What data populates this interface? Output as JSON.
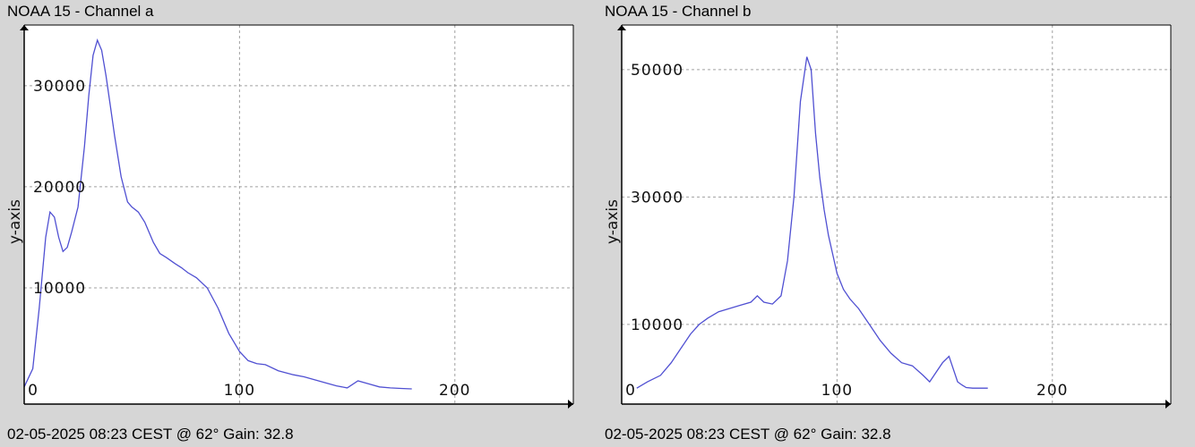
{
  "panels": [
    {
      "title": "NOAA 15 - Channel a",
      "footer": "02-05-2025 08:23 CEST @ 62° Gain: 32.8"
    },
    {
      "title": "NOAA 15 - Channel b",
      "footer": "02-05-2025 08:23 CEST @ 62° Gain: 32.8"
    }
  ],
  "colors": {
    "background": "#d6d6d6",
    "plot_background": "#ffffff",
    "line": "#5050d2",
    "grid": "#a0a0a0"
  },
  "chart_data": [
    {
      "type": "line",
      "title": "NOAA 15 - Channel a",
      "ylabel": "y-axis",
      "xlim": [
        0,
        255
      ],
      "ylim": [
        -1500,
        36000
      ],
      "grid": true,
      "x_grid": [
        100,
        200
      ],
      "y_grid": [
        10000,
        20000,
        30000
      ],
      "x_tick_labels": [
        {
          "x": 0,
          "label": "0"
        },
        {
          "x": 100,
          "label": "100"
        },
        {
          "x": 200,
          "label": "200"
        }
      ],
      "y_tick_labels": [
        {
          "y": 10000,
          "label": "10000"
        },
        {
          "y": 20000,
          "label": "20000"
        },
        {
          "y": 30000,
          "label": "30000"
        }
      ],
      "series": [
        {
          "x": [
            0,
            4,
            7,
            10,
            12,
            14,
            16,
            18,
            20,
            22,
            25,
            28,
            30,
            32,
            34,
            36,
            38,
            40,
            42,
            45,
            48,
            50,
            53,
            56,
            60,
            63,
            66,
            70,
            73,
            76,
            80,
            85,
            90,
            95,
            100,
            104,
            108,
            112,
            118,
            125,
            130,
            135,
            140,
            145,
            150,
            155,
            160,
            165,
            170,
            175,
            180
          ],
          "y": [
            200,
            2000,
            8000,
            15000,
            17500,
            17000,
            15000,
            13600,
            14000,
            15500,
            18000,
            24000,
            29000,
            33000,
            34500,
            33500,
            31000,
            28000,
            25000,
            21000,
            18500,
            18000,
            17500,
            16500,
            14500,
            13400,
            13000,
            12400,
            12000,
            11500,
            11000,
            10000,
            8000,
            5500,
            3700,
            2800,
            2500,
            2400,
            1800,
            1400,
            1200,
            900,
            600,
            300,
            100,
            800,
            500,
            200,
            100,
            50,
            0
          ]
        }
      ]
    },
    {
      "type": "line",
      "title": "NOAA 15 - Channel b",
      "ylabel": "y-axis",
      "xlim": [
        0,
        255
      ],
      "ylim": [
        -2500,
        57000
      ],
      "grid": true,
      "x_grid": [
        100,
        200
      ],
      "y_grid": [
        10000,
        30000,
        50000
      ],
      "x_tick_labels": [
        {
          "x": 0,
          "label": "0"
        },
        {
          "x": 100,
          "label": "100"
        },
        {
          "x": 200,
          "label": "200"
        }
      ],
      "y_tick_labels": [
        {
          "y": 10000,
          "label": "10000"
        },
        {
          "y": 30000,
          "label": "30000"
        },
        {
          "y": 50000,
          "label": "50000"
        }
      ],
      "series": [
        {
          "x": [
            7,
            12,
            18,
            23,
            28,
            32,
            36,
            40,
            45,
            50,
            55,
            60,
            63,
            66,
            70,
            74,
            77,
            80,
            83,
            86,
            88,
            90,
            92,
            94,
            96,
            98,
            100,
            103,
            106,
            110,
            115,
            120,
            125,
            130,
            135,
            140,
            143,
            146,
            149,
            152,
            154,
            156,
            158,
            160,
            163,
            166,
            170
          ],
          "y": [
            0,
            1000,
            2000,
            4000,
            6500,
            8500,
            10000,
            11000,
            12000,
            12500,
            13000,
            13500,
            14500,
            13500,
            13200,
            14500,
            20000,
            30000,
            45000,
            52000,
            50000,
            40000,
            33000,
            28000,
            24000,
            21000,
            18000,
            15500,
            14000,
            12500,
            10000,
            7500,
            5500,
            4000,
            3500,
            2000,
            1000,
            2500,
            4000,
            5000,
            3000,
            1000,
            500,
            100,
            0,
            0,
            0
          ]
        }
      ]
    }
  ]
}
